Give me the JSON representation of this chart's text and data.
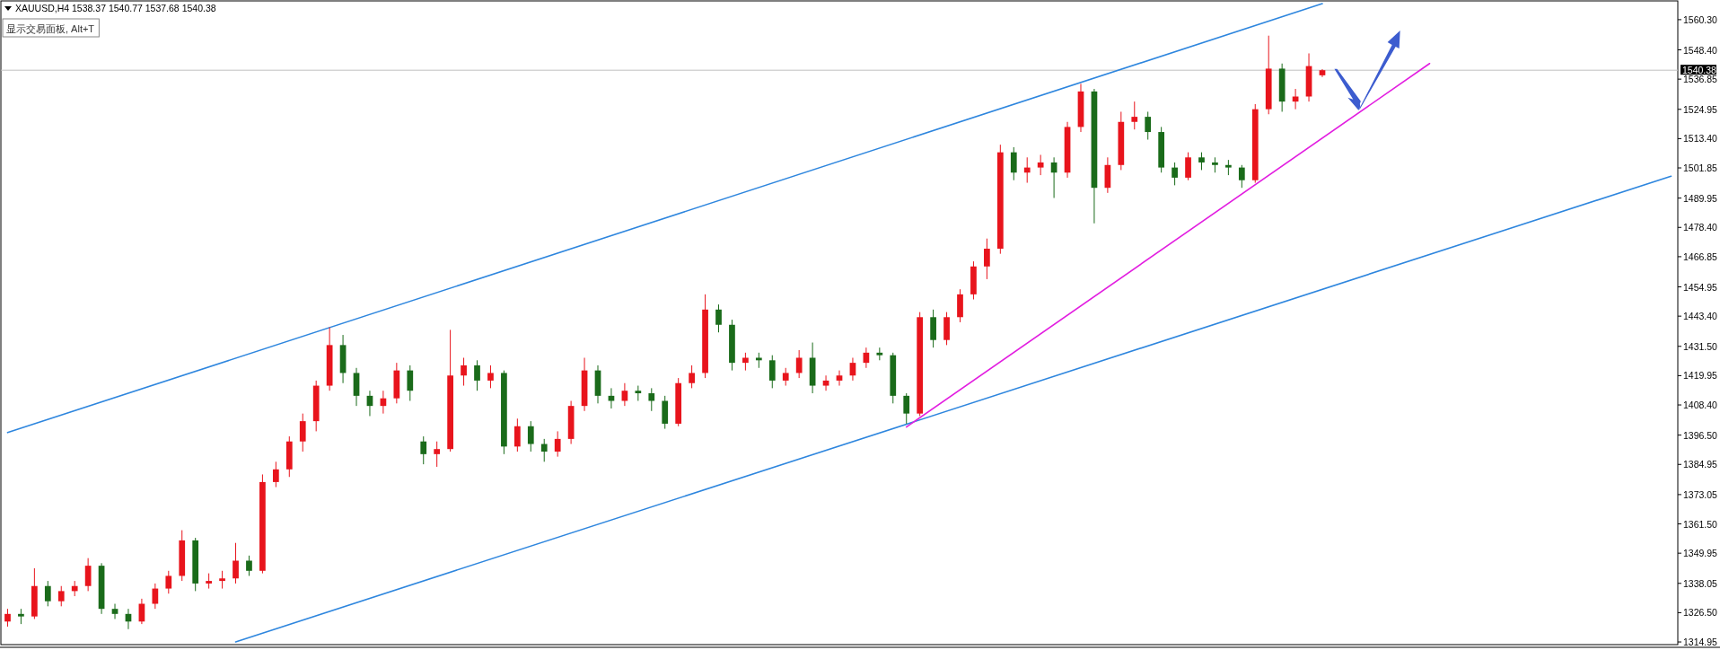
{
  "chart_data": {
    "type": "candlestick",
    "title": "XAUUSD,H4  1538.37 1540.77 1537.68 1540.38",
    "annotations": [
      "显示交易面板, Alt+T"
    ],
    "categories": [
      null,
      null,
      null,
      null,
      null,
      null,
      null,
      null,
      null,
      null,
      null,
      null,
      null,
      null,
      null,
      null,
      null,
      null,
      null,
      null,
      null,
      null,
      null,
      null,
      null,
      null,
      null,
      null,
      null,
      null,
      null,
      null,
      null,
      null,
      null,
      null,
      null,
      null,
      null,
      null,
      null,
      null,
      null,
      null,
      null,
      null,
      null,
      null,
      null,
      null,
      null,
      null,
      null,
      null,
      null,
      null,
      null,
      null,
      null,
      null,
      null,
      null,
      null,
      null,
      null,
      null,
      null,
      null,
      null,
      null,
      null,
      null,
      null,
      null,
      null,
      null,
      null,
      null,
      null,
      null,
      null,
      null,
      null,
      null,
      null,
      null,
      null,
      null,
      null,
      null,
      null,
      null,
      null,
      null,
      null,
      null,
      null,
      null,
      null,
      null,
      null,
      null,
      null,
      null,
      null,
      null,
      null,
      null,
      null,
      null,
      null,
      null,
      null,
      null,
      null,
      null,
      null,
      null,
      null,
      null,
      null,
      null,
      null,
      null,
      null
    ],
    "ylim": [
      1313.9,
      1567.7
    ],
    "yticks": [
      {
        "value": 1314.95,
        "label": "1314.95"
      },
      {
        "value": 1326.5,
        "label": "1326.50"
      },
      {
        "value": 1338.05,
        "label": "1338.05"
      },
      {
        "value": 1349.95,
        "label": "1349.95"
      },
      {
        "value": 1361.5,
        "label": "1361.50"
      },
      {
        "value": 1373.05,
        "label": "1373.05"
      },
      {
        "value": 1384.95,
        "label": "1384.95"
      },
      {
        "value": 1396.5,
        "label": "1396.50"
      },
      {
        "value": 1408.4,
        "label": "1408.40"
      },
      {
        "value": 1419.95,
        "label": "1419.95"
      },
      {
        "value": 1431.5,
        "label": "1431.50"
      },
      {
        "value": 1443.4,
        "label": "1443.40"
      },
      {
        "value": 1454.95,
        "label": "1454.95"
      },
      {
        "value": 1466.85,
        "label": "1466.85"
      },
      {
        "value": 1478.4,
        "label": "1478.40"
      },
      {
        "value": 1489.95,
        "label": "1489.95"
      },
      {
        "value": 1501.85,
        "label": "1501.85"
      },
      {
        "value": 1513.4,
        "label": "1513.40"
      },
      {
        "value": 1524.95,
        "label": "1524.95"
      },
      {
        "value": 1536.85,
        "label": "1536.85"
      },
      {
        "value": 1548.4,
        "label": "1548.40"
      },
      {
        "value": 1560.3,
        "label": "1560.30"
      }
    ],
    "tick_labels": "y",
    "ohlc": [
      [
        1323,
        1328,
        1321,
        1326
      ],
      [
        1326,
        1328,
        1322,
        1325
      ],
      [
        1325,
        1344,
        1324,
        1337
      ],
      [
        1337,
        1339,
        1329,
        1331
      ],
      [
        1331,
        1337,
        1329,
        1335
      ],
      [
        1335,
        1339,
        1333,
        1337
      ],
      [
        1337,
        1348,
        1335,
        1345
      ],
      [
        1345,
        1346,
        1326,
        1328
      ],
      [
        1328,
        1330,
        1324,
        1326
      ],
      [
        1326,
        1328,
        1320,
        1323
      ],
      [
        1323,
        1332,
        1322,
        1330
      ],
      [
        1330,
        1338,
        1328,
        1336
      ],
      [
        1336,
        1343,
        1334,
        1341
      ],
      [
        1341,
        1359,
        1339,
        1355
      ],
      [
        1355,
        1356,
        1335,
        1338
      ],
      [
        1338,
        1342,
        1336,
        1339
      ],
      [
        1339,
        1343,
        1336,
        1340
      ],
      [
        1340,
        1354,
        1338,
        1347
      ],
      [
        1347,
        1349,
        1341,
        1343
      ],
      [
        1343,
        1381,
        1342,
        1378
      ],
      [
        1378,
        1386,
        1376,
        1383
      ],
      [
        1383,
        1396,
        1380,
        1394
      ],
      [
        1394,
        1405,
        1390,
        1402
      ],
      [
        1402,
        1418,
        1398,
        1416
      ],
      [
        1416,
        1439,
        1414,
        1432
      ],
      [
        1432,
        1436,
        1417,
        1421
      ],
      [
        1421,
        1423,
        1408,
        1412
      ],
      [
        1412,
        1414,
        1404,
        1408
      ],
      [
        1408,
        1414,
        1405,
        1411
      ],
      [
        1411,
        1425,
        1409,
        1422
      ],
      [
        1422,
        1424,
        1410,
        1414
      ],
      [
        1394,
        1396,
        1385,
        1389
      ],
      [
        1389,
        1394,
        1384,
        1391
      ],
      [
        1391,
        1438,
        1390,
        1420
      ],
      [
        1420,
        1427,
        1416,
        1424
      ],
      [
        1424,
        1426,
        1414,
        1418
      ],
      [
        1418,
        1424,
        1415,
        1421
      ],
      [
        1421,
        1422,
        1389,
        1392
      ],
      [
        1392,
        1403,
        1390,
        1400
      ],
      [
        1400,
        1402,
        1390,
        1393
      ],
      [
        1393,
        1395,
        1386,
        1390
      ],
      [
        1390,
        1398,
        1388,
        1395
      ],
      [
        1395,
        1410,
        1393,
        1408
      ],
      [
        1408,
        1427,
        1406,
        1422
      ],
      [
        1422,
        1424,
        1409,
        1412
      ],
      [
        1412,
        1415,
        1407,
        1410
      ],
      [
        1410,
        1417,
        1408,
        1414
      ],
      [
        1414,
        1416,
        1410,
        1413
      ],
      [
        1413,
        1415,
        1406,
        1410
      ],
      [
        1410,
        1412,
        1399,
        1401
      ],
      [
        1401,
        1419,
        1400,
        1417
      ],
      [
        1417,
        1424,
        1415,
        1421
      ],
      [
        1421,
        1452,
        1419,
        1446
      ],
      [
        1446,
        1448,
        1437,
        1440
      ],
      [
        1440,
        1442,
        1422,
        1425
      ],
      [
        1425,
        1429,
        1422,
        1427
      ],
      [
        1427,
        1429,
        1423,
        1426
      ],
      [
        1426,
        1428,
        1415,
        1418
      ],
      [
        1418,
        1423,
        1416,
        1421
      ],
      [
        1421,
        1430,
        1419,
        1427
      ],
      [
        1427,
        1433,
        1413,
        1416
      ],
      [
        1416,
        1420,
        1414,
        1418
      ],
      [
        1418,
        1422,
        1416,
        1420
      ],
      [
        1420,
        1427,
        1418,
        1425
      ],
      [
        1425,
        1431,
        1423,
        1429
      ],
      [
        1429,
        1431,
        1426,
        1428
      ],
      [
        1428,
        1429,
        1409,
        1412
      ],
      [
        1412,
        1413,
        1401,
        1405
      ],
      [
        1405,
        1445,
        1404,
        1443
      ],
      [
        1443,
        1446,
        1431,
        1434
      ],
      [
        1434,
        1445,
        1432,
        1443
      ],
      [
        1443,
        1454,
        1441,
        1452
      ],
      [
        1452,
        1465,
        1450,
        1463
      ],
      [
        1463,
        1474,
        1458,
        1470
      ],
      [
        1470,
        1511,
        1468,
        1508
      ],
      [
        1508,
        1510,
        1497,
        1500
      ],
      [
        1500,
        1506,
        1496,
        1502
      ],
      [
        1502,
        1507,
        1499,
        1504
      ],
      [
        1504,
        1506,
        1490,
        1500
      ],
      [
        1500,
        1520,
        1498,
        1518
      ],
      [
        1518,
        1535,
        1516,
        1532
      ],
      [
        1532,
        1533,
        1480,
        1494
      ],
      [
        1494,
        1506,
        1492,
        1503
      ],
      [
        1503,
        1524,
        1501,
        1520
      ],
      [
        1520,
        1528,
        1517,
        1522
      ],
      [
        1522,
        1524,
        1513,
        1516
      ],
      [
        1516,
        1518,
        1500,
        1502
      ],
      [
        1502,
        1504,
        1495,
        1498
      ],
      [
        1498,
        1508,
        1497,
        1506
      ],
      [
        1506,
        1508,
        1501,
        1504
      ],
      [
        1504,
        1506,
        1500,
        1503
      ],
      [
        1503,
        1505,
        1499,
        1502
      ],
      [
        1502,
        1503,
        1494,
        1497
      ],
      [
        1497,
        1527,
        1496,
        1525
      ],
      [
        1525,
        1554,
        1523,
        1541
      ],
      [
        1541,
        1543,
        1524,
        1528
      ],
      [
        1528,
        1533,
        1525,
        1530
      ],
      [
        1530,
        1547,
        1528,
        1542
      ],
      [
        1538.37,
        1540.77,
        1537.68,
        1540.38
      ],
      null,
      null,
      null,
      null,
      null,
      null,
      null,
      null,
      null,
      null,
      null,
      null,
      null,
      null,
      null,
      null,
      null,
      null,
      null,
      null,
      null,
      null,
      null,
      null,
      null,
      null
    ],
    "colors": [
      "#e8141c",
      "#1a6b1a",
      "#e8141c",
      "#1a6b1a",
      "#e8141c",
      "#e8141c",
      "#e8141c",
      "#1a6b1a",
      "#1a6b1a",
      "#1a6b1a",
      "#e8141c",
      "#e8141c",
      "#e8141c",
      "#e8141c",
      "#1a6b1a",
      "#e8141c",
      "#e8141c",
      "#e8141c",
      "#1a6b1a",
      "#e8141c",
      "#e8141c",
      "#e8141c",
      "#e8141c",
      "#e8141c",
      "#e8141c",
      "#1a6b1a",
      "#1a6b1a",
      "#1a6b1a",
      "#e8141c",
      "#e8141c",
      "#1a6b1a",
      "#1a6b1a",
      "#e8141c",
      "#e8141c",
      "#e8141c",
      "#1a6b1a",
      "#e8141c",
      "#1a6b1a",
      "#e8141c",
      "#1a6b1a",
      "#1a6b1a",
      "#e8141c",
      "#e8141c",
      "#e8141c",
      "#1a6b1a",
      "#1a6b1a",
      "#e8141c",
      "#1a6b1a",
      "#1a6b1a",
      "#1a6b1a",
      "#e8141c",
      "#e8141c",
      "#e8141c",
      "#1a6b1a",
      "#1a6b1a",
      "#e8141c",
      "#1a6b1a",
      "#1a6b1a",
      "#e8141c",
      "#e8141c",
      "#1a6b1a",
      "#e8141c",
      "#e8141c",
      "#e8141c",
      "#e8141c",
      "#1a6b1a",
      "#1a6b1a",
      "#1a6b1a",
      "#e8141c",
      "#1a6b1a",
      "#e8141c",
      "#e8141c",
      "#e8141c",
      "#e8141c",
      "#e8141c",
      "#1a6b1a",
      "#e8141c",
      "#e8141c",
      "#1a6b1a",
      "#e8141c",
      "#e8141c",
      "#1a6b1a",
      "#e8141c",
      "#e8141c",
      "#e8141c",
      "#1a6b1a",
      "#1a6b1a",
      "#1a6b1a",
      "#e8141c",
      "#1a6b1a",
      "#1a6b1a",
      "#1a6b1a",
      "#1a6b1a",
      "#e8141c",
      "#e8141c",
      "#1a6b1a",
      "#e8141c",
      "#e8141c",
      "#e8141c",
      null,
      null,
      null,
      null,
      null,
      null,
      null,
      null,
      null,
      null,
      null,
      null,
      null,
      null,
      null,
      null,
      null,
      null,
      null,
      null,
      null,
      null,
      null,
      null,
      null,
      null
    ],
    "series": [
      {
        "type": "line",
        "color": "#2e86de",
        "values": [
          1397.5,
          null,
          null,
          null,
          null,
          null,
          null,
          null,
          null,
          null,
          null,
          null,
          null,
          null,
          null,
          null,
          null,
          null,
          null,
          null,
          null,
          null,
          null,
          null,
          null,
          null,
          null,
          null,
          null,
          null,
          null,
          null,
          null,
          null,
          null,
          null,
          null,
          null,
          null,
          null,
          null,
          null,
          null,
          null,
          null,
          null,
          null,
          null,
          null,
          null,
          null,
          null,
          null,
          null,
          null,
          null,
          null,
          null,
          null,
          null,
          null,
          null,
          null,
          null,
          null,
          null,
          null,
          null,
          null,
          null,
          null,
          null,
          null,
          null,
          null,
          null,
          null,
          null,
          null,
          null,
          null,
          null,
          null,
          null,
          null,
          null,
          null,
          null,
          null,
          null,
          null,
          null,
          null,
          null,
          null,
          null,
          null,
          null,
          1566.6,
          null,
          null,
          null,
          null,
          null,
          null,
          null,
          null,
          null,
          null,
          null,
          null,
          null,
          null,
          null,
          null,
          null,
          null,
          null,
          null,
          null,
          null,
          null,
          null,
          null,
          null
        ]
      },
      {
        "type": "line",
        "color": "#2e86de",
        "values": [
          null,
          null,
          null,
          null,
          null,
          null,
          null,
          null,
          null,
          null,
          null,
          null,
          null,
          null,
          null,
          null,
          null,
          1315.0,
          null,
          null,
          null,
          null,
          null,
          null,
          null,
          null,
          null,
          null,
          null,
          null,
          null,
          null,
          null,
          null,
          null,
          null,
          null,
          null,
          null,
          null,
          null,
          null,
          null,
          null,
          null,
          null,
          null,
          null,
          null,
          null,
          null,
          null,
          null,
          null,
          null,
          null,
          null,
          null,
          null,
          null,
          null,
          null,
          null,
          null,
          null,
          null,
          null,
          null,
          null,
          null,
          null,
          null,
          null,
          null,
          null,
          null,
          null,
          null,
          null,
          null,
          null,
          null,
          null,
          null,
          null,
          null,
          null,
          null,
          null,
          null,
          null,
          null,
          null,
          null,
          null,
          null,
          null,
          null,
          null,
          null,
          null,
          null,
          null,
          null,
          null,
          null,
          null,
          null,
          null,
          null,
          null,
          null,
          null,
          null,
          null,
          null,
          null,
          null,
          null,
          null,
          null,
          null,
          null,
          null,
          1498.6
        ]
      },
      {
        "type": "line",
        "color": "#e21ee0",
        "values": [
          null,
          null,
          null,
          null,
          null,
          null,
          null,
          null,
          null,
          null,
          null,
          null,
          null,
          null,
          null,
          null,
          null,
          null,
          null,
          null,
          null,
          null,
          null,
          null,
          null,
          null,
          null,
          null,
          null,
          null,
          null,
          null,
          null,
          null,
          null,
          null,
          null,
          null,
          null,
          null,
          null,
          null,
          null,
          null,
          null,
          null,
          null,
          null,
          null,
          null,
          null,
          null,
          null,
          null,
          null,
          null,
          null,
          null,
          null,
          null,
          null,
          null,
          null,
          null,
          null,
          null,
          null,
          1399.7,
          null,
          null,
          null,
          null,
          null,
          null,
          null,
          null,
          null,
          null,
          null,
          null,
          null,
          null,
          null,
          null,
          null,
          null,
          null,
          null,
          null,
          null,
          null,
          null,
          null,
          null,
          null,
          null,
          null,
          null,
          null,
          null,
          null,
          null,
          null,
          null,
          null,
          null,
          1543.0,
          null,
          null,
          null,
          null,
          null,
          null,
          null,
          null,
          null,
          null,
          null,
          null,
          null,
          null,
          null,
          null,
          null,
          null
        ]
      }
    ],
    "ref_lines": [
      {
        "axis": "y",
        "value": 1540.38,
        "label": "1540.38",
        "color": "#c0c0c0"
      }
    ]
  }
}
